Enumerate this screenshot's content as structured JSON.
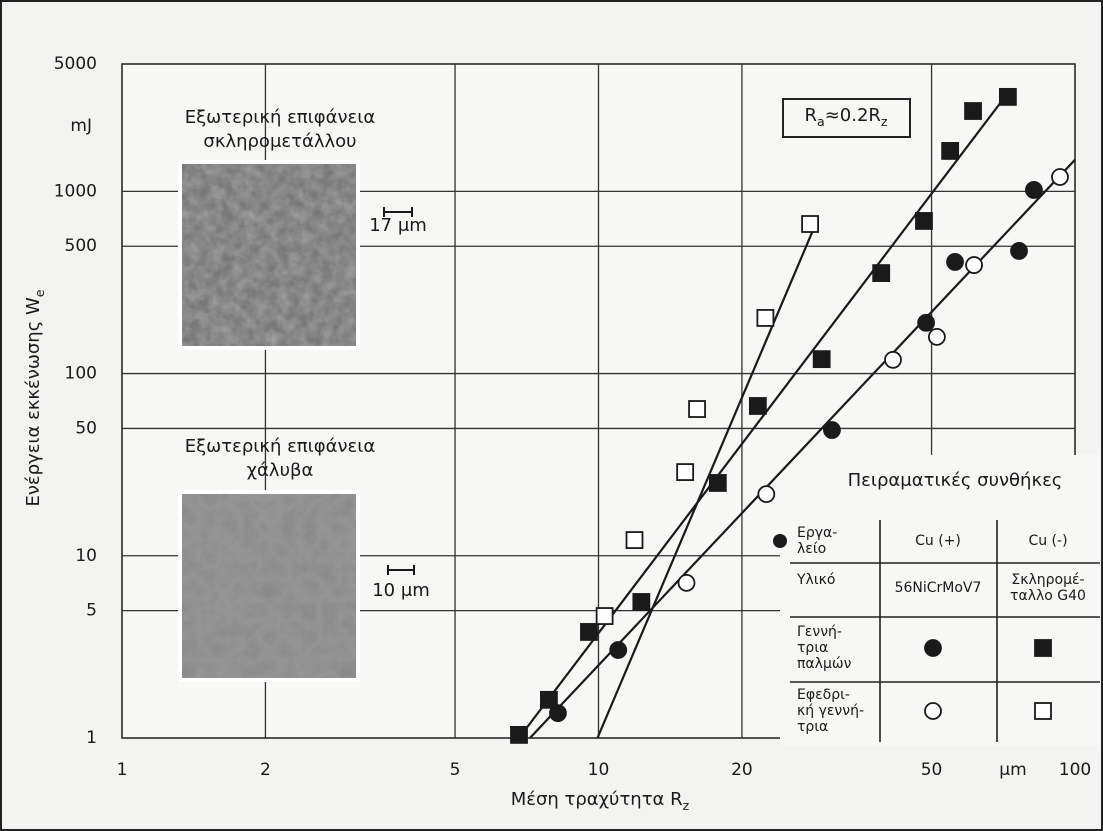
{
  "chart_data": {
    "type": "scatter",
    "x_label": [
      "Μέση τραχύτητα R",
      "z"
    ],
    "y_label": [
      "Ενέργεια εκκένωσης W",
      "e"
    ],
    "y_unit": "mJ",
    "x_unit": "μm",
    "annotation": [
      "R",
      "a",
      "≈0.2R",
      "z"
    ],
    "xlim": [
      1,
      100
    ],
    "ylim": [
      1,
      5000
    ],
    "xticks": [
      1,
      2,
      5,
      10,
      20,
      50,
      100
    ],
    "yticks": [
      1,
      5,
      10,
      50,
      100,
      500,
      1000,
      5000
    ],
    "log_x": true,
    "log_y": true,
    "grid": true,
    "series": [
      {
        "marker": "circle",
        "filled": true,
        "color": "#1a1a1a",
        "x": [
          8.22,
          11.0,
          30.9,
          48.7,
          56.0,
          76.3,
          82.0
        ],
        "values": [
          1.37,
          3.04,
          49,
          190,
          410,
          471,
          1018
        ]
      },
      {
        "marker": "square",
        "filled": true,
        "color": "#1a1a1a",
        "x": [
          6.81,
          7.87,
          9.55,
          12.3,
          17.8,
          21.6,
          29.4,
          39.2,
          48.2,
          54.7,
          61.1,
          72.3
        ],
        "values": [
          1.04,
          1.62,
          3.82,
          5.58,
          25.1,
          66.4,
          120,
          356,
          688,
          1667,
          2760,
          3300
        ]
      },
      {
        "marker": "circle",
        "filled": false,
        "color": "#1a1a1a",
        "x": [
          15.3,
          22.5,
          41.5,
          51.3,
          61.4,
          93.0
        ],
        "values": [
          7.1,
          21.8,
          119,
          159,
          394,
          1199
        ]
      },
      {
        "marker": "square",
        "filled": false,
        "color": "#1a1a1a",
        "x": [
          10.3,
          11.9,
          15.2,
          16.1,
          22.4,
          27.8
        ],
        "values": [
          4.67,
          12.2,
          28.8,
          63.9,
          202,
          662
        ]
      }
    ],
    "fit_lines": [
      {
        "x": [
          9.95,
          28.5
        ],
        "values": [
          1,
          654
        ]
      },
      {
        "x": [
          6.81,
          73.1
        ],
        "values": [
          1,
          3600
        ]
      },
      {
        "x": [
          7.18,
          100
        ],
        "values": [
          1,
          1490
        ]
      }
    ],
    "insets": [
      {
        "caption": [
          "Εξωτερική επιφάνεια",
          "σκληρομετάλλου"
        ],
        "scale": "17 μm"
      },
      {
        "caption": [
          "Εξωτερική επιφάνεια",
          "χάλυβα"
        ],
        "scale": "10 μm"
      }
    ],
    "legend_table": {
      "title": "Πειραματικές συνθήκες",
      "tool_label": [
        "Εργα-",
        "λείο"
      ],
      "columns": [
        "Cu (+)",
        "Cu (-)"
      ],
      "material_label": "Υλικό",
      "materials": [
        [
          "56NiCrMoV7"
        ],
        [
          "Σκληρομέ-",
          "ταλλο G40"
        ]
      ],
      "rows": [
        [
          "Γεννή-",
          "τρια",
          "παλμών"
        ],
        [
          "Εφεδρι-",
          "κή γεννή-",
          "τρια"
        ]
      ]
    }
  }
}
